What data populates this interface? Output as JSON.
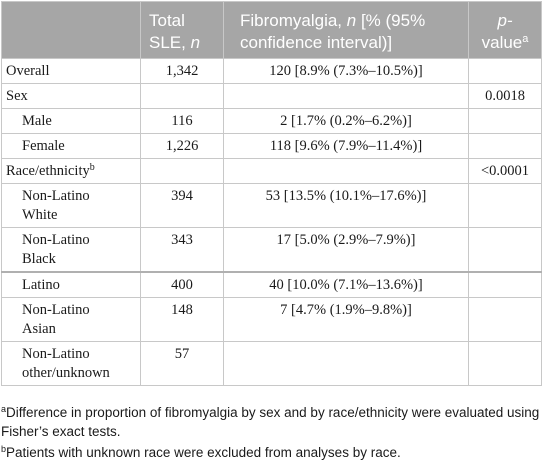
{
  "table": {
    "header": {
      "col_label": "",
      "col_total_line1": "Total",
      "col_total_line2": "SLE, ",
      "col_total_italic": "n",
      "col_fibro_line1_pre": "Fibromyalgia, ",
      "col_fibro_italic": "n",
      "col_fibro_line1_post": " [% (95%",
      "col_fibro_line2": "confidence interval)]",
      "col_p_line1": "p-",
      "col_p_line2": "value",
      "col_p_sup": "a"
    },
    "rows": [
      {
        "label": "Overall",
        "label_sup": "",
        "total": "1,342",
        "fibro": "120 [8.9% (7.3%–10.5%)]",
        "p": ""
      },
      {
        "label": "Sex",
        "label_sup": "",
        "total": "",
        "fibro": "",
        "p": "0.0018"
      },
      {
        "label": "Male",
        "label_sup": "",
        "total": "116",
        "fibro": "2 [1.7% (0.2%–6.2%)]",
        "p": ""
      },
      {
        "label": "Female",
        "label_sup": "",
        "total": "1,226",
        "fibro": "118 [9.6% (7.9%–11.4%)]",
        "p": ""
      },
      {
        "label": "Race/ethnicity",
        "label_sup": "b",
        "total": "",
        "fibro": "",
        "p": "<0.0001"
      },
      {
        "label_line1": "Non-Latino",
        "label_line2": "White",
        "total": "394",
        "fibro": "53 [13.5% (10.1%–17.6%)]",
        "p": ""
      },
      {
        "label_line1": "Non-Latino",
        "label_line2": "Black",
        "total": "343",
        "fibro": "17 [5.0% (2.9%–7.9%)]",
        "p": ""
      },
      {
        "label": "Latino",
        "label_sup": "",
        "total": "400",
        "fibro": "40 [10.0% (7.1%–13.6%)]",
        "p": ""
      },
      {
        "label_line1": "Non-Latino",
        "label_line2": "Asian",
        "total": "148",
        "fibro": "7 [4.7% (1.9%–9.8%)]",
        "p": ""
      },
      {
        "label_line1": "Non-Latino",
        "label_line2": "other/unknown",
        "total": "57",
        "fibro": "",
        "p": ""
      }
    ]
  },
  "footnotes": {
    "a_marker": "a",
    "a_text": "Difference in proportion of fibromyalgia by sex and by race/ethnicity were evaluated using Fisher’s exact tests.",
    "b_marker": "b",
    "b_text": "Patients with unknown race were excluded from analyses by race."
  },
  "colors": {
    "header_bg": "#a6a6a6",
    "header_text": "#ffffff",
    "grid": "#c8c8c8"
  }
}
